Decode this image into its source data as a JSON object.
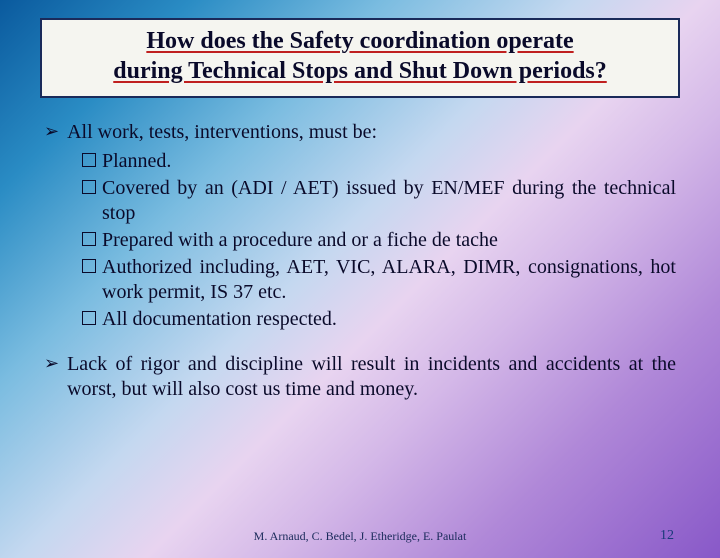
{
  "title": {
    "line1": "How does the Safety coordination operate",
    "line2": "during Technical Stops and Shut Down periods?"
  },
  "bullets": [
    {
      "text": "All work, tests, interventions, must be:",
      "subs": [
        "Planned.",
        "Covered by an (ADI / AET) issued by EN/MEF during the technical stop",
        "Prepared with a procedure and or a fiche de tache",
        "Authorized including, AET, VIC, ALARA, DIMR, consignations, hot work permit, IS 37 etc.",
        "All documentation respected."
      ]
    },
    {
      "text": "Lack of rigor and discipline will result in incidents and accidents at the worst, but will also cost us time and money.",
      "subs": []
    }
  ],
  "footer": "M. Arnaud, C. Bedel, J. Etheridge, E. Paulat",
  "pageNumber": "12",
  "style": {
    "title_fontsize": 24,
    "body_fontsize": 20,
    "footer_fontsize": 12,
    "pagenum_fontsize": 14,
    "title_underline_color": "#c02020",
    "title_bg": "#f5f5f0",
    "title_border": "#1a2a5a",
    "text_color": "#0a0a2a",
    "bg_gradient": [
      "#0a5a9e",
      "#2a8cc4",
      "#7abce0",
      "#c4d8f0",
      "#e8d4f0",
      "#d4b8e8",
      "#b088d8",
      "#8858c8"
    ]
  }
}
